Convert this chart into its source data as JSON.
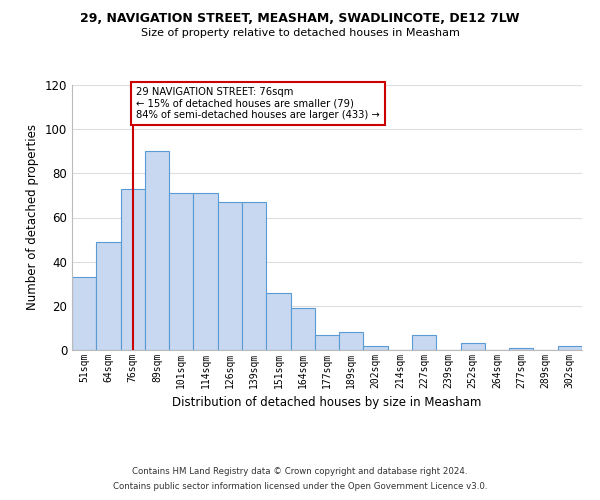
{
  "title": "29, NAVIGATION STREET, MEASHAM, SWADLINCOTE, DE12 7LW",
  "subtitle": "Size of property relative to detached houses in Measham",
  "xlabel": "Distribution of detached houses by size in Measham",
  "ylabel": "Number of detached properties",
  "bin_labels": [
    "51sqm",
    "64sqm",
    "76sqm",
    "89sqm",
    "101sqm",
    "114sqm",
    "126sqm",
    "139sqm",
    "151sqm",
    "164sqm",
    "177sqm",
    "189sqm",
    "202sqm",
    "214sqm",
    "227sqm",
    "239sqm",
    "252sqm",
    "264sqm",
    "277sqm",
    "289sqm",
    "302sqm"
  ],
  "bar_heights": [
    33,
    49,
    73,
    90,
    71,
    71,
    67,
    67,
    26,
    19,
    7,
    8,
    2,
    0,
    7,
    0,
    3,
    0,
    1,
    0,
    2
  ],
  "bar_color": "#c8d8f0",
  "bar_edge_color": "#5a9ad5",
  "highlight_x_label": "76sqm",
  "highlight_line_color": "#cc0000",
  "annotation_text": "29 NAVIGATION STREET: 76sqm\n← 15% of detached houses are smaller (79)\n84% of semi-detached houses are larger (433) →",
  "annotation_box_color": "#ffffff",
  "annotation_box_edge_color": "#cc0000",
  "ylim": [
    0,
    120
  ],
  "yticks": [
    0,
    20,
    40,
    60,
    80,
    100,
    120
  ],
  "footnote1": "Contains HM Land Registry data © Crown copyright and database right 2024.",
  "footnote2": "Contains public sector information licensed under the Open Government Licence v3.0.",
  "background_color": "#ffffff",
  "grid_color": "#dddddd"
}
